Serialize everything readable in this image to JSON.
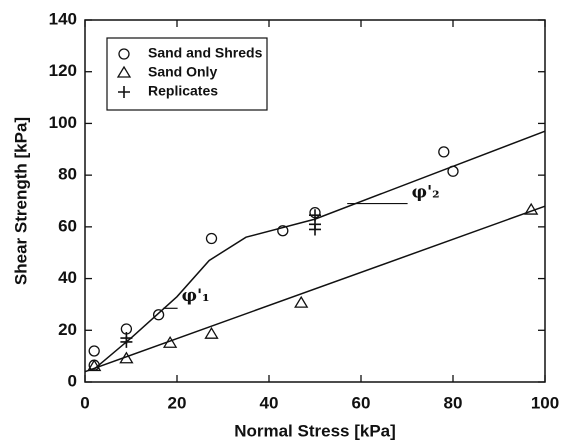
{
  "chart_data": {
    "type": "scatter",
    "xlabel": "Normal Stress [kPa]",
    "ylabel": "Shear Strength [kPa]",
    "xlim": [
      0,
      100
    ],
    "ylim": [
      0,
      140
    ],
    "xticks": [
      0,
      20,
      40,
      60,
      80,
      100
    ],
    "yticks": [
      0,
      20,
      40,
      60,
      80,
      100,
      120,
      140
    ],
    "series": [
      {
        "name": "Sand and Shreds",
        "marker": "circle",
        "color": "#111",
        "x": [
          2,
          2,
          9,
          16,
          27.5,
          43,
          50,
          78,
          80
        ],
        "values": [
          12,
          6.5,
          20.5,
          26,
          55.5,
          58.5,
          65.5,
          89,
          81.5
        ]
      },
      {
        "name": "Sand Only",
        "marker": "triangle",
        "color": "#111",
        "x": [
          2,
          9,
          18.5,
          27.5,
          47,
          97
        ],
        "values": [
          6,
          9,
          15,
          18.5,
          30.5,
          66.5
        ]
      },
      {
        "name": "Replicates",
        "marker": "plus",
        "color": "#111",
        "x": [
          9,
          9,
          50,
          50,
          50
        ],
        "values": [
          17,
          15.5,
          64.5,
          61,
          59
        ]
      }
    ],
    "lines": [
      {
        "x": [
          2,
          10,
          20,
          27,
          35,
          50,
          100
        ],
        "values": [
          5,
          17,
          33,
          47,
          56,
          63,
          97
        ]
      },
      {
        "x": [
          0,
          100
        ],
        "values": [
          4,
          68
        ]
      }
    ],
    "annotations": [
      {
        "text": "φ'₁",
        "x": 21,
        "y": 33,
        "from_x": 17,
        "from_y": 28.5
      },
      {
        "text": "φ'₂",
        "x": 71,
        "y": 73,
        "from_x": 57,
        "from_y": 69
      }
    ]
  }
}
